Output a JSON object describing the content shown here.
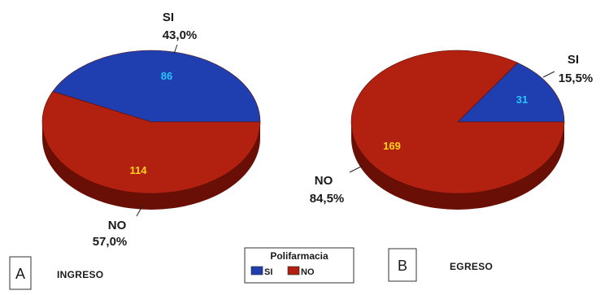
{
  "colors": {
    "si": "#1f3fb0",
    "si_side": "#132a7a",
    "no": "#b2200f",
    "no_side": "#6a0f06",
    "value_si": "#29c4ff",
    "value_no": "#ffd21a"
  },
  "legend": {
    "title": "Polifarmacia",
    "items": [
      {
        "label": "SI",
        "color": "#1f3fb0"
      },
      {
        "label": "NO",
        "color": "#b2200f"
      }
    ]
  },
  "chart_data": [
    {
      "type": "pie",
      "panel_letter": "A",
      "panel_title": "INGRESO",
      "slices": [
        {
          "name": "SI",
          "value": 86,
          "percent": "43,0%"
        },
        {
          "name": "NO",
          "value": 114,
          "percent": "57,0%"
        }
      ]
    },
    {
      "type": "pie",
      "panel_letter": "B",
      "panel_title": "EGRESO",
      "slices": [
        {
          "name": "SI",
          "value": 31,
          "percent": "15,5%"
        },
        {
          "name": "NO",
          "value": 169,
          "percent": "84,5%"
        }
      ]
    }
  ]
}
